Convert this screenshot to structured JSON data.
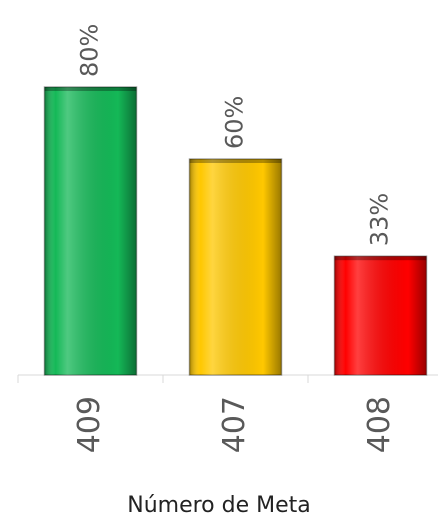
{
  "chart_data": {
    "type": "bar",
    "x_label": "Número de Meta",
    "categories": [
      "409",
      "407",
      "408"
    ],
    "values": [
      80,
      60,
      33
    ],
    "value_labels": [
      "80%",
      "60%",
      "33%"
    ],
    "colors": [
      "#14b857",
      "#ffc800",
      "#ff0000"
    ],
    "ylim": [
      0,
      100
    ]
  }
}
